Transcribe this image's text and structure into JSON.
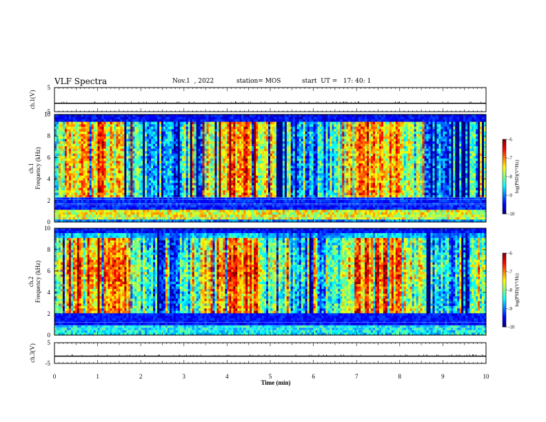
{
  "header": {
    "title": "VLF Spectra",
    "date": "Nov.1  , 2022",
    "station": "station= MOS",
    "start": "start  UT =   17: 40: 1"
  },
  "chart_data": [
    {
      "type": "line",
      "panel": "ch1-voltage",
      "ylabel": "ch.1(V)",
      "ylim": [
        -5,
        5
      ],
      "yticks": [
        "5",
        "-5"
      ],
      "x": [
        0,
        10
      ],
      "y": [
        -1.5,
        -1.5
      ]
    },
    {
      "type": "heatmap",
      "panel": "ch1-spectrogram",
      "ylabel_line1": "ch.1",
      "ylabel_line2": "Frequency  (kHz)",
      "ylim": [
        0,
        10
      ],
      "yticks": [
        "0",
        "2",
        "4",
        "6",
        "8",
        "10"
      ],
      "xlim": [
        0,
        10
      ],
      "colorbar": {
        "label": "log(PSD)(V²/Hz)",
        "ticks": [
          "-6",
          "-7",
          "-8",
          "-9",
          "-10"
        ],
        "range": [
          -10,
          -6
        ]
      }
    },
    {
      "type": "heatmap",
      "panel": "ch2-spectrogram",
      "ylabel_line1": "ch.2",
      "ylabel_line2": "Frequency  (kHz)",
      "ylim": [
        0,
        10
      ],
      "yticks": [
        "0",
        "2",
        "4",
        "6",
        "8",
        "10"
      ],
      "xlim": [
        0,
        10
      ],
      "colorbar": {
        "label": "log(PSD)(V²/Hz)",
        "ticks": [
          "-6",
          "-7",
          "-8",
          "-9",
          "-10"
        ],
        "range": [
          -10,
          -6
        ]
      }
    },
    {
      "type": "line",
      "panel": "ch3-voltage",
      "ylabel": "ch.3(V)",
      "ylim": [
        -5,
        5
      ],
      "yticks": [
        "5",
        "-5"
      ],
      "x": [
        0,
        10
      ],
      "y": [
        -1.5,
        -1.5
      ]
    }
  ],
  "xaxis": {
    "label": "Time  (min)",
    "ticks": [
      "0",
      "1",
      "2",
      "3",
      "4",
      "5",
      "6",
      "7",
      "8",
      "9",
      "10"
    ]
  }
}
